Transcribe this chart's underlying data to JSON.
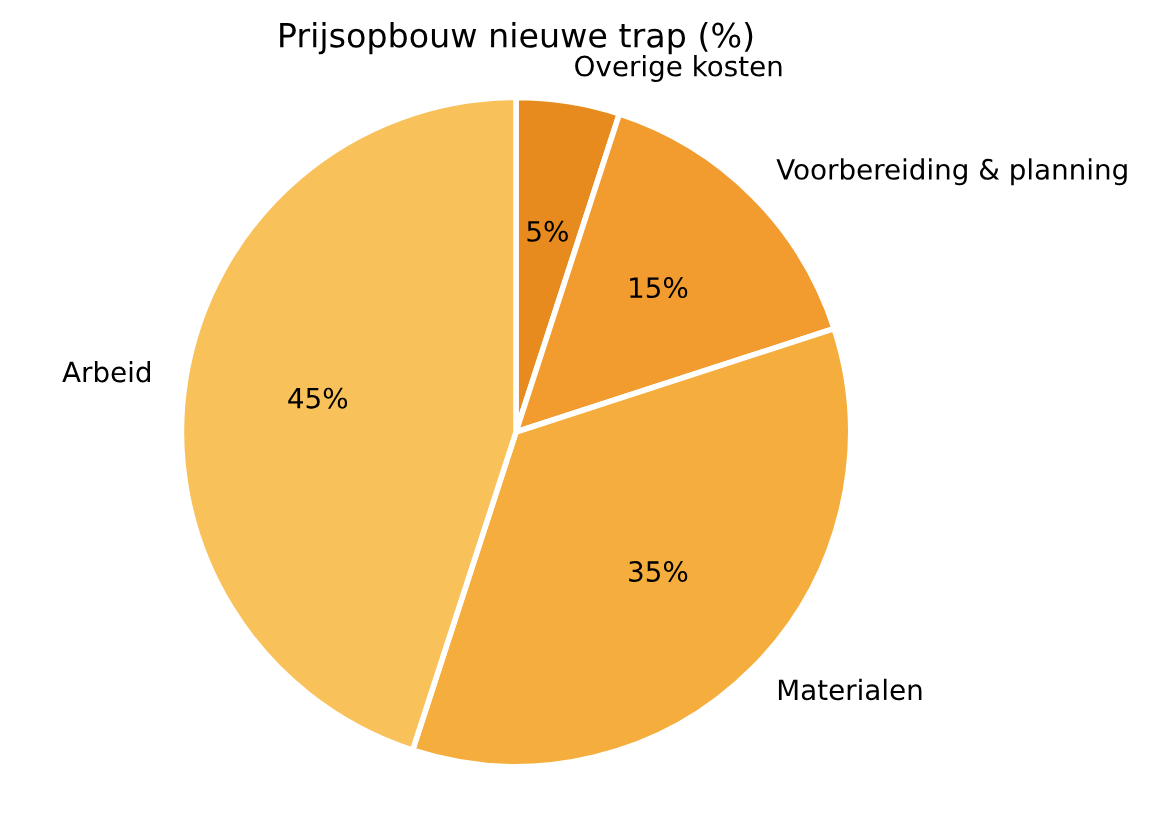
{
  "chart_data": {
    "type": "pie",
    "title": "Prijsopbouw nieuwe trap (%)",
    "categories": [
      "Overige kosten",
      "Voorbereiding & planning",
      "Materialen",
      "Arbeid"
    ],
    "values": [
      5,
      15,
      35,
      45
    ],
    "colors": [
      "#e88b1e",
      "#f29b2e",
      "#f5ae3d",
      "#f9c15a"
    ],
    "value_labels": [
      "5%",
      "15%",
      "35%",
      "45%"
    ]
  }
}
